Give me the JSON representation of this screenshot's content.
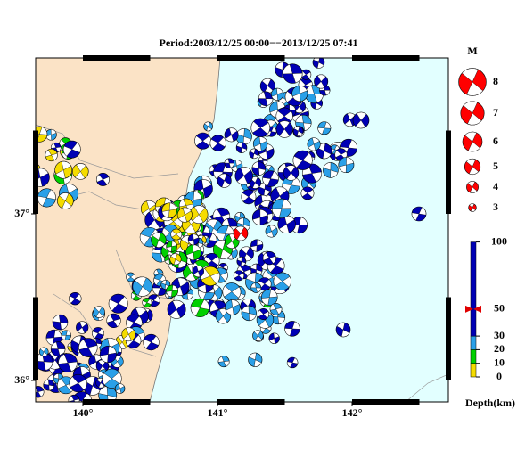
{
  "title": "Period:2003/12/25 00:00−−2013/12/25 07:41",
  "axes": {
    "lon_ticks": [
      {
        "value": 140,
        "label": "140°"
      },
      {
        "value": 141,
        "label": "141°"
      },
      {
        "value": 142,
        "label": "142°"
      }
    ],
    "lat_ticks": [
      {
        "value": 37,
        "label": "37°"
      },
      {
        "value": 36,
        "label": "36°"
      }
    ]
  },
  "magnitude_legend": {
    "title": "M",
    "color": "#ff0000",
    "magnitudes": [
      8,
      7,
      6,
      5,
      4,
      3
    ]
  },
  "depth_scale": {
    "label": "Depth(km)",
    "ticks": [
      0,
      10,
      20,
      30,
      50,
      100
    ],
    "colors": [
      "#f5dc00",
      "#00d000",
      "#2aa0e8",
      "#0000b4",
      "#0000b4"
    ]
  }
}
